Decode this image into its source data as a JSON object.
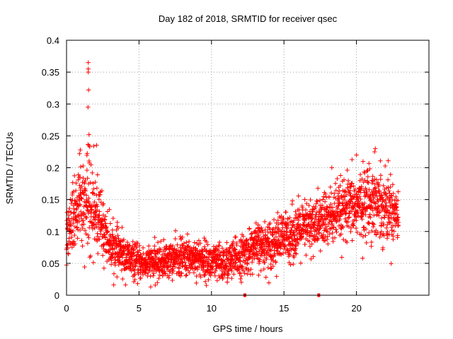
{
  "chart_data": {
    "type": "scatter",
    "title": "Day 182 of 2018, SRMTID for receiver qsec",
    "xlabel": "GPS time / hours",
    "ylabel": "SRMTID / TECUs",
    "xlim": [
      0,
      25
    ],
    "ylim": [
      0,
      0.4
    ],
    "grid": true,
    "marker": "+",
    "x_ticks": [
      0,
      5,
      10,
      15,
      20
    ],
    "x_tick_labels": [
      "0",
      "5",
      "10",
      "15",
      "20"
    ],
    "y_ticks": [
      0,
      0.05,
      0.1,
      0.15,
      0.2,
      0.25,
      0.3,
      0.35,
      0.4
    ],
    "y_tick_labels": [
      "0",
      "0.05",
      "0.1",
      "0.15",
      "0.2",
      "0.25",
      "0.3",
      "0.35",
      "0.4"
    ],
    "baseline_markers_x": [
      12.3,
      17.4
    ],
    "data_range_hours": [
      0,
      22.9
    ],
    "trend": {
      "x": [
        0,
        0.5,
        1,
        1.5,
        2,
        3,
        4,
        5,
        6,
        7,
        8,
        9,
        10,
        11,
        12,
        13,
        14,
        15,
        16,
        17,
        18,
        19,
        20,
        21,
        22,
        22.9
      ],
      "y": [
        0.1,
        0.13,
        0.15,
        0.14,
        0.13,
        0.08,
        0.06,
        0.05,
        0.05,
        0.055,
        0.06,
        0.06,
        0.05,
        0.05,
        0.06,
        0.075,
        0.08,
        0.09,
        0.1,
        0.11,
        0.12,
        0.13,
        0.14,
        0.15,
        0.14,
        0.13
      ]
    },
    "spread": {
      "x": [
        0,
        1,
        1.5,
        2,
        3,
        5,
        8,
        12,
        15,
        18,
        20,
        21,
        22.9
      ],
      "y": [
        0.03,
        0.045,
        0.055,
        0.045,
        0.025,
        0.018,
        0.02,
        0.022,
        0.028,
        0.032,
        0.035,
        0.04,
        0.035
      ]
    },
    "peaks": [
      {
        "x": 1.5,
        "y": 0.365
      },
      {
        "x": 1.5,
        "y": 0.355
      },
      {
        "x": 1.5,
        "y": 0.35
      },
      {
        "x": 1.52,
        "y": 0.322
      },
      {
        "x": 1.48,
        "y": 0.295
      },
      {
        "x": 1.55,
        "y": 0.252
      },
      {
        "x": 1.55,
        "y": 0.235
      },
      {
        "x": 0.95,
        "y": 0.228
      },
      {
        "x": 0.9,
        "y": 0.222
      },
      {
        "x": 20.0,
        "y": 0.22
      },
      {
        "x": 21.3,
        "y": 0.23
      },
      {
        "x": 21.25,
        "y": 0.225
      },
      {
        "x": 18.3,
        "y": 0.2
      }
    ],
    "series_color": "#ff0000",
    "grid_color": "#a0a0a0"
  }
}
